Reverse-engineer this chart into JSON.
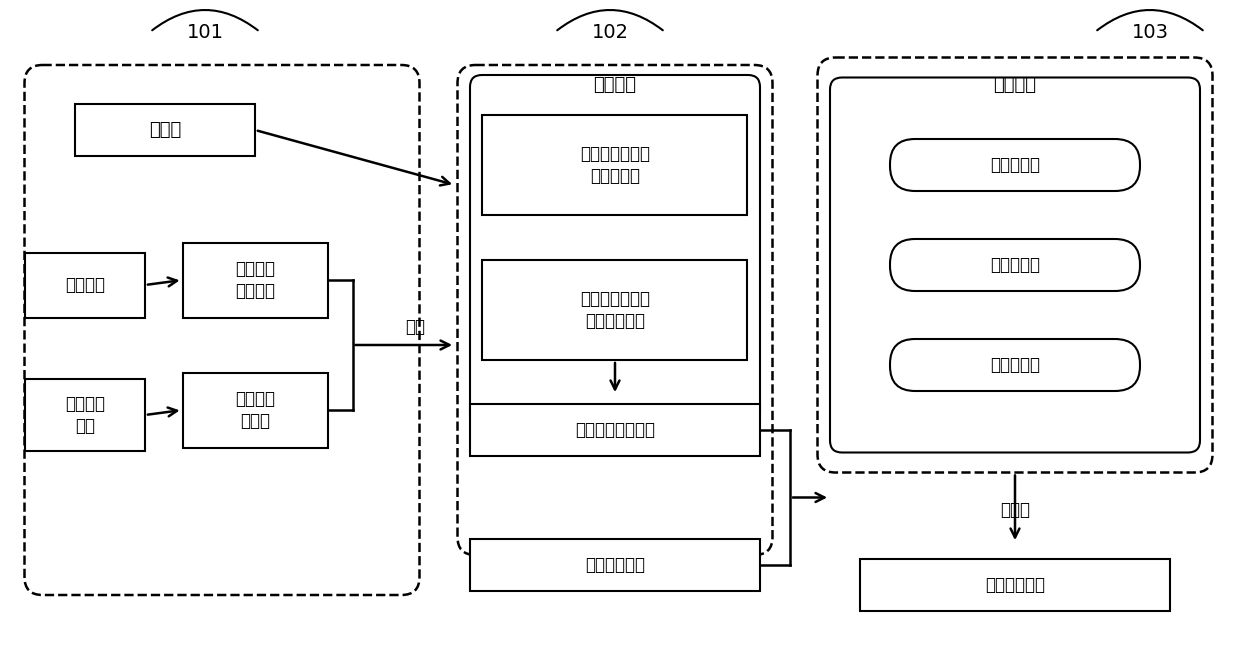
{
  "bg_color": "#ffffff",
  "box101_label": "101",
  "box102_label": "102",
  "box103_label": "103",
  "zhishi_ku": "知识库",
  "dangqian_input": "当前输入",
  "dangqian_input_wenti": "当前输入\n作为问题",
  "dangqian_duolun": "当前多轮\n对话",
  "duolun_guanjianc": "多轮对话\n关键词",
  "jiansuo_label": "检索",
  "jiansuo_moxing": "检索模型",
  "guanjianci_sousuo": "关键词搜索得到\n的多轮对话",
  "dangqian_sousuo": "当前输入搜索得\n到的多轮对话",
  "houxuan_duolun": "候选多轮对话集合",
  "dangqian_duolun_box": "当前多轮对话",
  "huifu_xuanze": "回复选择",
  "di1": "第一相似度",
  "di2": "第二相似度",
  "di3": "第三相似度",
  "chongpaixu": "重排序",
  "zuizhong": "最终回复语句"
}
